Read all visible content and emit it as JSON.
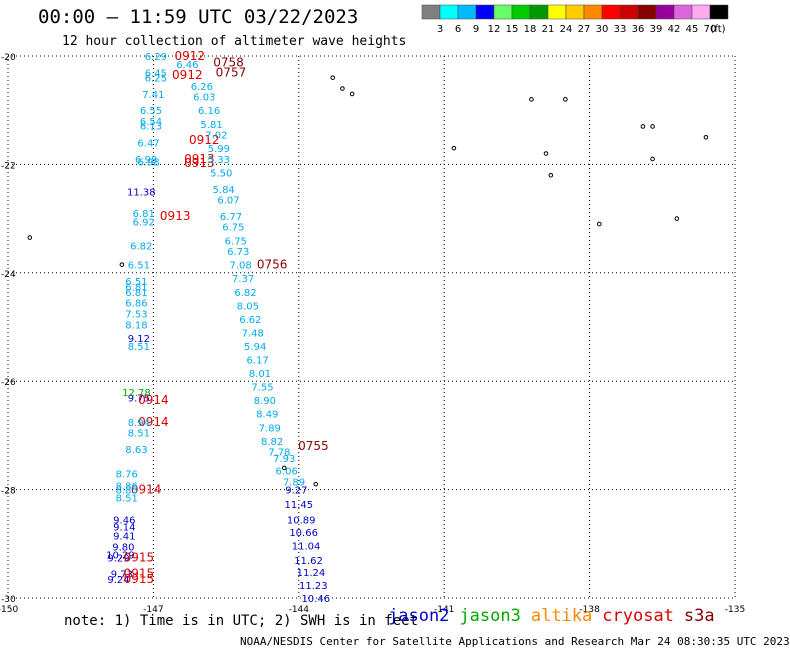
{
  "header": {
    "title": "00:00 — 11:59 UTC 03/22/2023",
    "subtitle": "12 hour collection of altimeter wave heights"
  },
  "footer": {
    "note": "note: 1) Time is in UTC; 2) SWH is in feet",
    "credit": "NOAA/NESDIS Center for Satellite Applications and Research   Mar 24 08:30:35 UTC 2023",
    "satellites": [
      {
        "name": "jason2",
        "color": "#0000cc"
      },
      {
        "name": "jason3",
        "color": "#00aa00"
      },
      {
        "name": "altika",
        "color": "#ff8800"
      },
      {
        "name": "cryosat",
        "color": "#dd0000"
      },
      {
        "name": "s3a",
        "color": "#880000"
      }
    ]
  },
  "colorbar": {
    "colors": [
      "#808080",
      "#00ffff",
      "#00bbff",
      "#0000ff",
      "#66ff66",
      "#00cc00",
      "#009900",
      "#ffff00",
      "#ffcc00",
      "#ff8800",
      "#ff0000",
      "#cc0000",
      "#880000",
      "#990099",
      "#dd66dd",
      "#ffaaee",
      "#000000"
    ],
    "labels": [
      "3",
      "6",
      "9",
      "12",
      "15",
      "18",
      "21",
      "24",
      "27",
      "30",
      "33",
      "36",
      "39",
      "42",
      "45",
      "70",
      "(ft)"
    ]
  },
  "chart_data": {
    "type": "scatter",
    "title": "00:00 — 11:59 UTC 03/22/2023",
    "subtitle": "12 hour collection of altimeter wave heights",
    "xlim": [
      -150,
      -135
    ],
    "ylim": [
      -30,
      -20
    ],
    "x_ticks": [
      "-150",
      "-147",
      "-144",
      "-141",
      "-138",
      "-135"
    ],
    "y_ticks": [
      "-20",
      "-22",
      "-24",
      "-26",
      "-28",
      "-30"
    ],
    "grid": true,
    "series": [
      {
        "name": "jason2",
        "color": "#0000cc",
        "points": [
          {
            "x": -147.25,
            "y": -22.5,
            "label": "11.38"
          },
          {
            "x": -147.3,
            "y": -25.2,
            "label": "9.12"
          },
          {
            "x": -147.6,
            "y": -28.55,
            "label": "9.46"
          },
          {
            "x": -147.6,
            "y": -28.68,
            "label": "9.14"
          },
          {
            "x": -147.6,
            "y": -28.85,
            "label": "9.41"
          },
          {
            "x": -147.62,
            "y": -29.05,
            "label": "9.80"
          },
          {
            "x": -147.68,
            "y": -29.2,
            "label": "10.29"
          },
          {
            "x": -147.72,
            "y": -29.25,
            "label": "9.29"
          },
          {
            "x": -147.65,
            "y": -29.55,
            "label": "9.73"
          },
          {
            "x": -147.72,
            "y": -29.65,
            "label": "9.24"
          },
          {
            "x": -144.05,
            "y": -28.0,
            "label": "9.27"
          },
          {
            "x": -144.0,
            "y": -28.27,
            "label": "11.45"
          },
          {
            "x": -143.95,
            "y": -28.55,
            "label": "10.89"
          },
          {
            "x": -143.9,
            "y": -28.78,
            "label": "10.66"
          },
          {
            "x": -143.85,
            "y": -29.03,
            "label": "11.04"
          },
          {
            "x": -143.8,
            "y": -29.3,
            "label": "11.62"
          },
          {
            "x": -143.75,
            "y": -29.52,
            "label": "11.24"
          },
          {
            "x": -143.7,
            "y": -29.76,
            "label": "11.23"
          },
          {
            "x": -143.65,
            "y": -30.0,
            "label": "10.46"
          },
          {
            "x": -147.3,
            "y": -26.3,
            "label": "9.75"
          }
        ]
      },
      {
        "name": "jason3",
        "color": "#00aa00",
        "points": [
          {
            "x": -147.35,
            "y": -26.2,
            "label": "12.78"
          }
        ]
      },
      {
        "name": "cryosat",
        "color": "#dd0000",
        "points": [
          {
            "x": -146.25,
            "y": -20.0,
            "label": "0912"
          },
          {
            "x": -146.3,
            "y": -20.35,
            "label": "0912"
          },
          {
            "x": -145.95,
            "y": -21.55,
            "label": "0912"
          },
          {
            "x": -146.05,
            "y": -21.9,
            "label": "0913"
          },
          {
            "x": -146.05,
            "y": -21.97,
            "label": "0913"
          },
          {
            "x": -146.55,
            "y": -22.95,
            "label": "0913"
          },
          {
            "x": -147.0,
            "y": -26.35,
            "label": "0914"
          },
          {
            "x": -147.0,
            "y": -26.75,
            "label": "0914"
          },
          {
            "x": -147.15,
            "y": -28.0,
            "label": "0914"
          },
          {
            "x": -147.3,
            "y": -29.25,
            "label": "0915"
          },
          {
            "x": -147.3,
            "y": -29.55,
            "label": "0915"
          },
          {
            "x": -147.3,
            "y": -29.65,
            "label": "0915"
          }
        ]
      },
      {
        "name": "s3a",
        "color": "#880000",
        "points": [
          {
            "x": -145.45,
            "y": -20.12,
            "label": "0758"
          },
          {
            "x": -145.4,
            "y": -20.3,
            "label": "0757"
          },
          {
            "x": -144.55,
            "y": -23.85,
            "label": "0756"
          },
          {
            "x": -143.7,
            "y": -27.2,
            "label": "0755"
          }
        ]
      },
      {
        "name": "cyan track (west)",
        "color": "#00aaee",
        "points": [
          {
            "x": -146.95,
            "y": -20.0,
            "label": "6.29"
          },
          {
            "x": -146.95,
            "y": -20.3,
            "label": "6.45"
          },
          {
            "x": -146.95,
            "y": -20.4,
            "label": "6.25"
          },
          {
            "x": -147.0,
            "y": -20.7,
            "label": "7.41"
          },
          {
            "x": -147.05,
            "y": -21.0,
            "label": "6.55"
          },
          {
            "x": -147.05,
            "y": -21.2,
            "label": "6.54"
          },
          {
            "x": -147.05,
            "y": -21.28,
            "label": "6.13"
          },
          {
            "x": -147.1,
            "y": -21.6,
            "label": "6.47"
          },
          {
            "x": -147.15,
            "y": -21.9,
            "label": "6.98"
          },
          {
            "x": -147.1,
            "y": -21.95,
            "label": "6.98"
          },
          {
            "x": -147.2,
            "y": -22.9,
            "label": "6.81"
          },
          {
            "x": -147.2,
            "y": -23.05,
            "label": "6.92"
          },
          {
            "x": -147.25,
            "y": -23.5,
            "label": "6.82"
          },
          {
            "x": -147.3,
            "y": -23.85,
            "label": "6.51"
          },
          {
            "x": -147.35,
            "y": -24.15,
            "label": "6.51"
          },
          {
            "x": -147.35,
            "y": -24.25,
            "label": "6.81"
          },
          {
            "x": -147.35,
            "y": -24.35,
            "label": "6.81"
          },
          {
            "x": -147.35,
            "y": -24.55,
            "label": "6.86"
          },
          {
            "x": -147.35,
            "y": -24.75,
            "label": "7.53"
          },
          {
            "x": -147.35,
            "y": -24.95,
            "label": "8.18"
          },
          {
            "x": -147.3,
            "y": -25.35,
            "label": "8.51"
          },
          {
            "x": -147.3,
            "y": -26.75,
            "label": "8.94"
          },
          {
            "x": -147.3,
            "y": -26.95,
            "label": "8.51"
          },
          {
            "x": -147.35,
            "y": -27.25,
            "label": "8.63"
          },
          {
            "x": -147.55,
            "y": -27.7,
            "label": "8.76"
          },
          {
            "x": -147.55,
            "y": -27.92,
            "label": "8.86"
          },
          {
            "x": -147.55,
            "y": -28.0,
            "label": "8.85"
          },
          {
            "x": -147.55,
            "y": -28.15,
            "label": "8.51"
          }
        ]
      },
      {
        "name": "cyan track (east)",
        "color": "#00aaee",
        "points": [
          {
            "x": -146.3,
            "y": -20.15,
            "label": "6.46"
          },
          {
            "x": -146.0,
            "y": -20.55,
            "label": "6.26"
          },
          {
            "x": -145.95,
            "y": -20.75,
            "label": "6.03"
          },
          {
            "x": -145.85,
            "y": -21.0,
            "label": "6.16"
          },
          {
            "x": -145.8,
            "y": -21.25,
            "label": "5.81"
          },
          {
            "x": -145.7,
            "y": -21.45,
            "label": "7.02"
          },
          {
            "x": -145.65,
            "y": -21.7,
            "label": "5.99"
          },
          {
            "x": -145.65,
            "y": -21.9,
            "label": "5.33"
          },
          {
            "x": -145.6,
            "y": -22.15,
            "label": "5.50"
          },
          {
            "x": -145.55,
            "y": -22.45,
            "label": "5.84"
          },
          {
            "x": -145.45,
            "y": -22.65,
            "label": "6.07"
          },
          {
            "x": -145.4,
            "y": -22.95,
            "label": "6.77"
          },
          {
            "x": -145.35,
            "y": -23.15,
            "label": "6.75"
          },
          {
            "x": -145.3,
            "y": -23.4,
            "label": "6.75"
          },
          {
            "x": -145.25,
            "y": -23.6,
            "label": "6.73"
          },
          {
            "x": -145.2,
            "y": -23.85,
            "label": "7.08"
          },
          {
            "x": -145.15,
            "y": -24.1,
            "label": "7.37"
          },
          {
            "x": -145.1,
            "y": -24.35,
            "label": "6.82"
          },
          {
            "x": -145.05,
            "y": -24.6,
            "label": "8.05"
          },
          {
            "x": -145.0,
            "y": -24.85,
            "label": "6.62"
          },
          {
            "x": -144.95,
            "y": -25.1,
            "label": "7.48"
          },
          {
            "x": -144.9,
            "y": -25.35,
            "label": "5.94"
          },
          {
            "x": -144.85,
            "y": -25.6,
            "label": "6.17"
          },
          {
            "x": -144.8,
            "y": -25.85,
            "label": "8.01"
          },
          {
            "x": -144.75,
            "y": -26.1,
            "label": "7.55"
          },
          {
            "x": -144.7,
            "y": -26.35,
            "label": "8.90"
          },
          {
            "x": -144.65,
            "y": -26.6,
            "label": "8.49"
          },
          {
            "x": -144.6,
            "y": -26.85,
            "label": "7.89"
          },
          {
            "x": -144.55,
            "y": -27.1,
            "label": "8.82"
          },
          {
            "x": -144.4,
            "y": -27.3,
            "label": "7.78"
          },
          {
            "x": -144.3,
            "y": -27.42,
            "label": "7.93"
          },
          {
            "x": -144.25,
            "y": -27.65,
            "label": "6.06"
          },
          {
            "x": -144.1,
            "y": -27.85,
            "label": "7.89"
          }
        ]
      }
    ]
  }
}
